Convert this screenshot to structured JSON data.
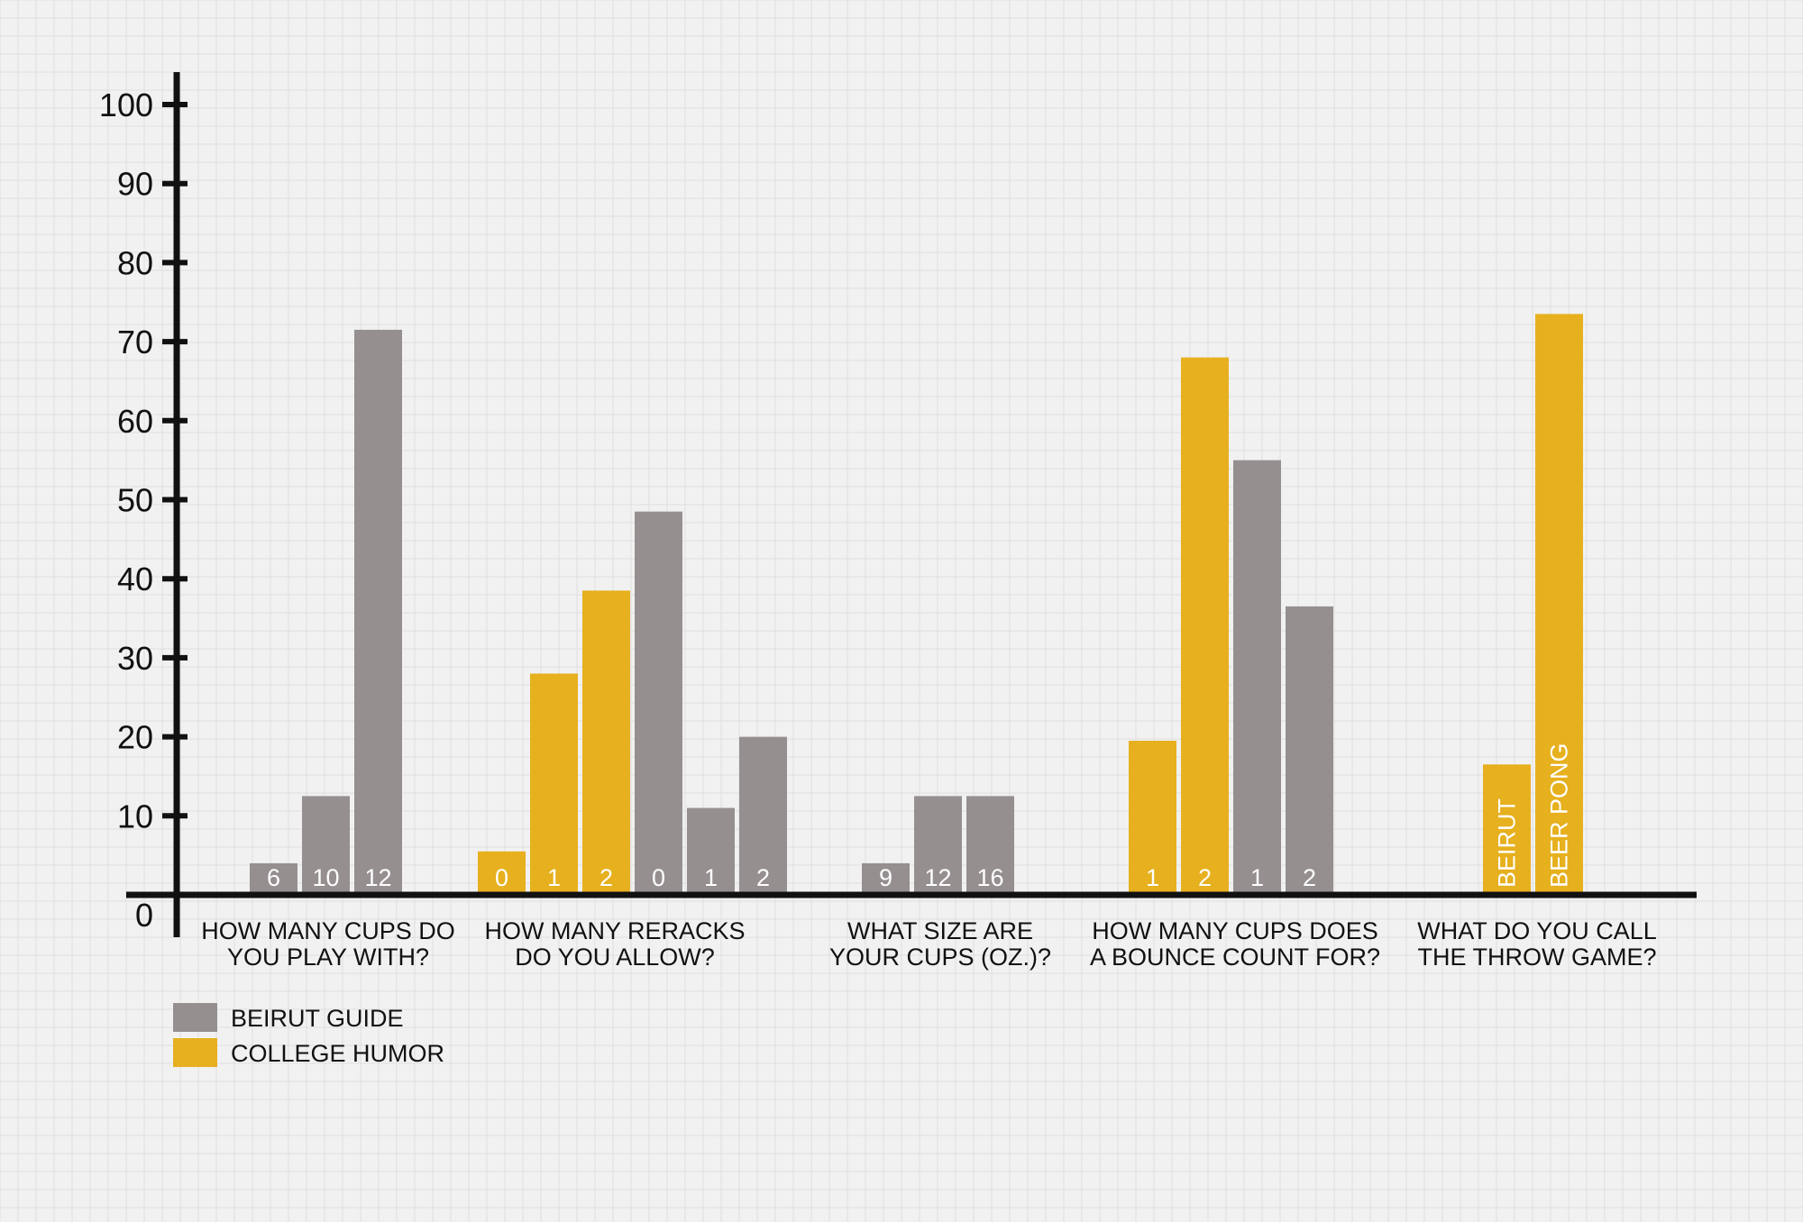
{
  "chart_data": {
    "type": "bar",
    "title": "",
    "xlabel": "",
    "ylabel": "",
    "ylim": [
      0,
      100
    ],
    "yticks": [
      0,
      10,
      20,
      30,
      40,
      50,
      60,
      70,
      80,
      90,
      100
    ],
    "grid": true,
    "legend_position": "bottom-left",
    "colors": {
      "beirut_guide": "#958F90",
      "college_humor": "#E6B01E",
      "background": "#F1F1F1",
      "grid": "#DEDEDE",
      "axis": "#111111"
    },
    "series": [
      {
        "name": "BEIRUT GUIDE",
        "key": "beirut_guide"
      },
      {
        "name": "COLLEGE HUMOR",
        "key": "college_humor"
      }
    ],
    "groups": [
      {
        "label_lines": [
          "HOW MANY CUPS DO",
          "YOU PLAY WITH?"
        ],
        "bars": [
          {
            "label": "6",
            "value": 4,
            "series": "beirut_guide"
          },
          {
            "label": "10",
            "value": 12.5,
            "series": "beirut_guide"
          },
          {
            "label": "12",
            "value": 71.5,
            "series": "beirut_guide"
          }
        ]
      },
      {
        "label_lines": [
          "HOW MANY RERACKS",
          "DO YOU ALLOW?"
        ],
        "bars": [
          {
            "label": "0",
            "value": 5.5,
            "series": "college_humor"
          },
          {
            "label": "1",
            "value": 28,
            "series": "college_humor"
          },
          {
            "label": "2",
            "value": 38.5,
            "series": "college_humor"
          },
          {
            "label": "0",
            "value": 48.5,
            "series": "beirut_guide"
          },
          {
            "label": "1",
            "value": 11,
            "series": "beirut_guide"
          },
          {
            "label": "2",
            "value": 20,
            "series": "beirut_guide"
          }
        ]
      },
      {
        "label_lines": [
          "WHAT SIZE ARE",
          "YOUR CUPS (OZ.)?"
        ],
        "bars": [
          {
            "label": "9",
            "value": 4,
            "series": "beirut_guide"
          },
          {
            "label": "12",
            "value": 12.5,
            "series": "beirut_guide"
          },
          {
            "label": "16",
            "value": 12.5,
            "series": "beirut_guide"
          }
        ]
      },
      {
        "label_lines": [
          "HOW MANY CUPS DOES",
          "A BOUNCE COUNT FOR?"
        ],
        "bars": [
          {
            "label": "1",
            "value": 19.5,
            "series": "college_humor"
          },
          {
            "label": "2",
            "value": 68,
            "series": "college_humor"
          },
          {
            "label": "1",
            "value": 55,
            "series": "beirut_guide"
          },
          {
            "label": "2",
            "value": 36.5,
            "series": "beirut_guide"
          }
        ]
      },
      {
        "label_lines": [
          "WHAT DO YOU CALL",
          "THE THROW GAME?"
        ],
        "bars": [
          {
            "label": "BEIRUT",
            "value": 16.5,
            "series": "college_humor",
            "vertical_label": true
          },
          {
            "label": "BEER PONG",
            "value": 73.5,
            "series": "college_humor",
            "vertical_label": true
          }
        ]
      }
    ]
  }
}
